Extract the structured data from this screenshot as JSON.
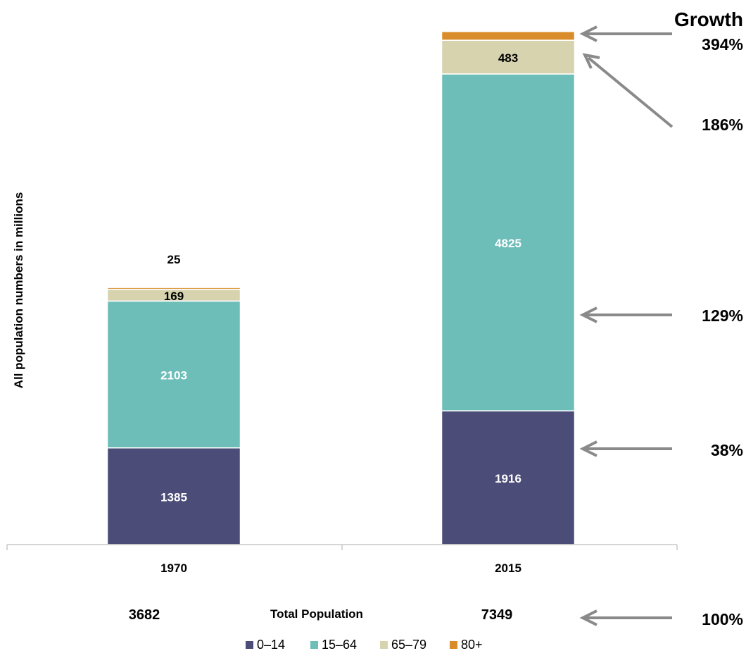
{
  "chart_data": {
    "type": "bar",
    "stacked": true,
    "categories": [
      "1970",
      "2015"
    ],
    "series": [
      {
        "name": "0–14",
        "color": "#4b4c78",
        "values": [
          1385,
          1916
        ]
      },
      {
        "name": "15–64",
        "color": "#6dbdb8",
        "values": [
          2103,
          4825
        ]
      },
      {
        "name": "65–79",
        "color": "#d6d3ae",
        "values": [
          169,
          483
        ]
      },
      {
        "name": "80+",
        "color": "#d98d2a",
        "values": [
          25,
          125
        ]
      }
    ],
    "ylabel": "All population numbers in millions",
    "grid": false,
    "legend": "bottom",
    "total_label": "Total Population",
    "totals": [
      "3682",
      "7349"
    ],
    "growth_title": "Growth",
    "growth": {
      "80+": "394%",
      "65–79": "186%",
      "15–64": "129%",
      "0–14": "38%",
      "total": "100%"
    }
  }
}
